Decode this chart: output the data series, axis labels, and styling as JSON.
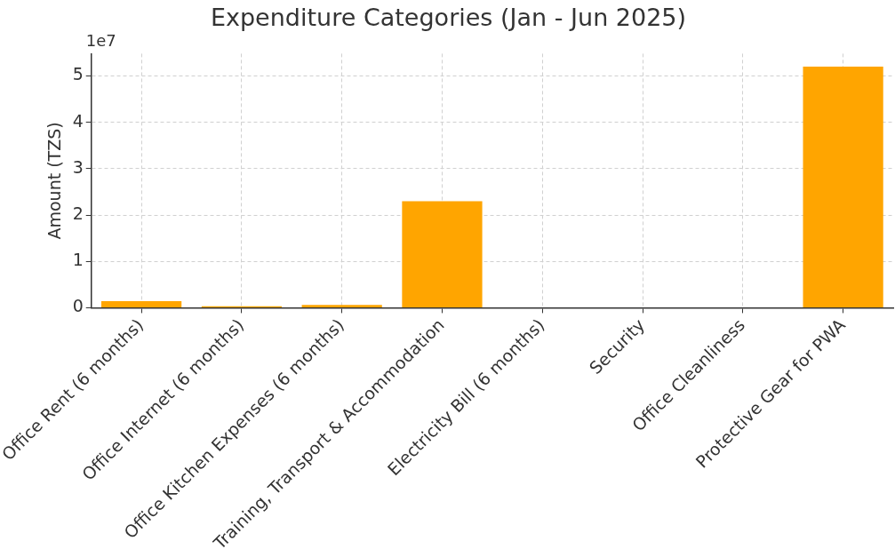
{
  "chart_data": {
    "type": "bar",
    "title": "Expenditure Categories (Jan - Jun 2025)",
    "ylabel": "Amount (TZS)",
    "annotations": [
      "1e7"
    ],
    "categories": [
      "Office Rent (6 months)",
      "Office Internet (6 months)",
      "Office Kitchen Expenses (6 months)",
      "Training, Transport & Accommodation",
      "Electricity Bill (6 months)",
      "Security",
      "Office Cleanliness",
      "Protective Gear for PWA"
    ],
    "values": [
      0.14,
      0.03,
      0.06,
      2.3,
      0,
      0,
      0,
      5.2
    ],
    "color": "#ffa500",
    "ylim": [
      0,
      5.48
    ],
    "yticks": [
      0,
      1,
      2,
      3,
      4,
      5
    ],
    "grid": true
  }
}
